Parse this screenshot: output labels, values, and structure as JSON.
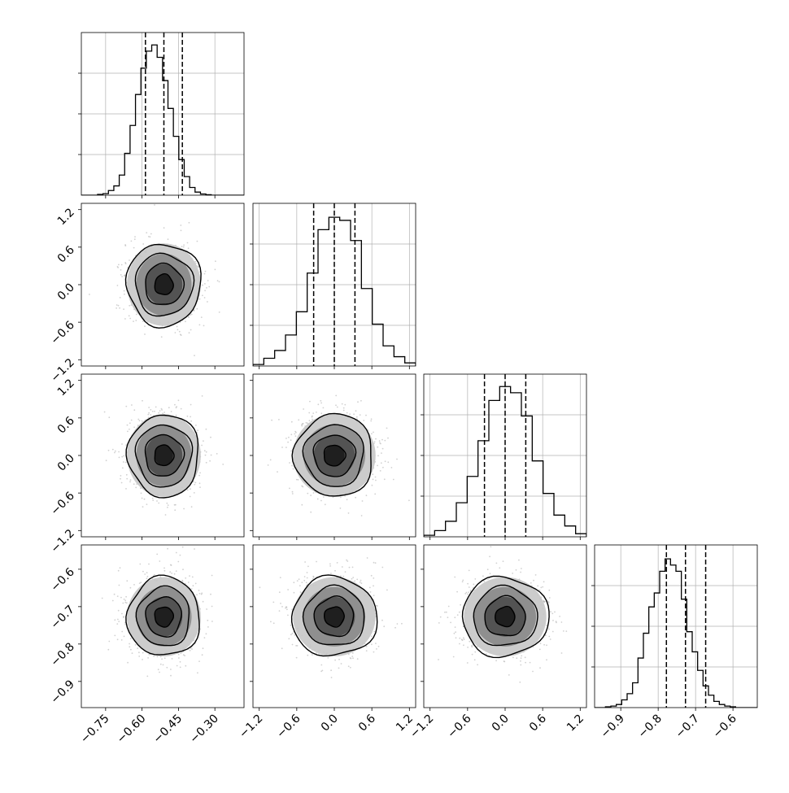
{
  "chart_data": {
    "type": "corner",
    "parameters": 4,
    "title": "",
    "grid": true,
    "histograms": [
      {
        "parameter": 0,
        "xlim": [
          -0.85,
          -0.18
        ],
        "ticks": [
          -0.75,
          -0.6,
          -0.45,
          -0.3
        ],
        "tick_labels": [
          "−0.75",
          "−0.60",
          "−0.45",
          "−0.30"
        ],
        "bins": [
          -0.85,
          -0.8277,
          -0.8054,
          -0.7831,
          -0.7608,
          -0.7385,
          -0.7162,
          -0.6939,
          -0.6716,
          -0.6493,
          -0.627,
          -0.6047,
          -0.5824,
          -0.5601,
          -0.5378,
          -0.5155,
          -0.4932,
          -0.4709,
          -0.4486,
          -0.4263,
          -0.404,
          -0.3817,
          -0.3594,
          -0.3371,
          -0.3148,
          -0.2925,
          -0.2702,
          -0.2479,
          -0.2256,
          -0.2033,
          -0.18
        ],
        "counts": [
          0,
          0,
          0,
          0.005,
          0.01,
          0.03,
          0.06,
          0.13,
          0.27,
          0.45,
          0.65,
          0.82,
          0.93,
          0.97,
          0.89,
          0.74,
          0.56,
          0.38,
          0.23,
          0.12,
          0.05,
          0.02,
          0.008,
          0.003,
          0,
          0,
          0,
          0,
          0,
          0
        ],
        "quantiles": [
          -0.586,
          -0.51,
          -0.434
        ],
        "ylim": [
          0,
          1.05
        ]
      },
      {
        "parameter": 1,
        "xlim": [
          -1.3,
          1.3
        ],
        "ticks": [
          -1.2,
          -0.6,
          0.0,
          0.6,
          1.2
        ],
        "tick_labels": [
          "−1.2",
          "−0.6",
          "0.0",
          "0.6",
          "1.2"
        ],
        "bins": [
          -1.3,
          -1.1267,
          -0.9533,
          -0.78,
          -0.6067,
          -0.4333,
          -0.26,
          -0.0867,
          0.0867,
          0.26,
          0.4333,
          0.6067,
          0.78,
          0.9533,
          1.1267,
          1.3
        ],
        "counts": [
          0.01,
          0.05,
          0.1,
          0.2,
          0.35,
          0.6,
          0.88,
          0.96,
          0.94,
          0.81,
          0.5,
          0.27,
          0.13,
          0.06,
          0.02
        ],
        "quantiles": [
          -0.33,
          0.0,
          0.33
        ],
        "ylim": [
          0,
          1.05
        ]
      },
      {
        "parameter": 2,
        "xlim": [
          -1.3,
          1.3
        ],
        "ticks": [
          -1.2,
          -0.6,
          0.0,
          0.6,
          1.2
        ],
        "tick_labels": [
          "−1.2",
          "−0.6",
          "0.0",
          "0.6",
          "1.2"
        ],
        "bins": [
          -1.3,
          -1.1267,
          -0.9533,
          -0.78,
          -0.6067,
          -0.4333,
          -0.26,
          -0.0867,
          0.0867,
          0.26,
          0.4333,
          0.6067,
          0.78,
          0.9533,
          1.1267,
          1.3
        ],
        "counts": [
          0.01,
          0.04,
          0.1,
          0.22,
          0.39,
          0.62,
          0.88,
          0.97,
          0.93,
          0.78,
          0.49,
          0.28,
          0.14,
          0.07,
          0.02
        ],
        "quantiles": [
          -0.33,
          0.0,
          0.33
        ],
        "ylim": [
          0,
          1.05
        ]
      },
      {
        "parameter": 3,
        "xlim": [
          -0.97,
          -0.535
        ],
        "ticks": [
          -0.9,
          -0.8,
          -0.7,
          -0.6
        ],
        "tick_labels": [
          "−0.9",
          "−0.8",
          "−0.7",
          "−0.6"
        ],
        "bins": [
          -0.97,
          -0.9555,
          -0.941,
          -0.9265,
          -0.912,
          -0.8975,
          -0.883,
          -0.8685,
          -0.854,
          -0.8395,
          -0.825,
          -0.8105,
          -0.796,
          -0.7815,
          -0.767,
          -0.7525,
          -0.738,
          -0.7235,
          -0.709,
          -0.6945,
          -0.68,
          -0.6655,
          -0.651,
          -0.6365,
          -0.622,
          -0.6075,
          -0.593,
          -0.5785,
          -0.564,
          -0.5495,
          -0.535
        ],
        "counts": [
          0,
          0,
          0.005,
          0.01,
          0.02,
          0.05,
          0.09,
          0.16,
          0.32,
          0.48,
          0.65,
          0.74,
          0.88,
          0.96,
          0.92,
          0.88,
          0.7,
          0.49,
          0.36,
          0.24,
          0.14,
          0.08,
          0.04,
          0.02,
          0.01,
          0.005,
          0,
          0,
          0,
          0
        ],
        "quantiles": [
          -0.778,
          -0.727,
          -0.673
        ],
        "ylim": [
          0,
          1.05
        ]
      }
    ],
    "pairs": [
      {
        "x": 0,
        "y": 1,
        "center": [
          -0.51,
          0.0
        ],
        "sigma": [
          0.076,
          0.33
        ],
        "ylim": [
          -1.3,
          1.3
        ],
        "yticks": [
          -1.2,
          -0.6,
          0.0,
          0.6,
          1.2
        ],
        "ytick_labels": [
          "−1.2",
          "−0.6",
          "0.0",
          "0.6",
          "1.2"
        ]
      },
      {
        "x": 0,
        "y": 2,
        "center": [
          -0.51,
          0.0
        ],
        "sigma": [
          0.076,
          0.33
        ],
        "ylim": [
          -1.3,
          1.3
        ],
        "yticks": [
          -1.2,
          -0.6,
          0.0,
          0.6,
          1.2
        ],
        "ytick_labels": [
          "−1.2",
          "−0.6",
          "0.0",
          "0.6",
          "1.2"
        ]
      },
      {
        "x": 1,
        "y": 2,
        "center": [
          0.0,
          0.0
        ],
        "sigma": [
          0.33,
          0.33
        ]
      },
      {
        "x": 0,
        "y": 3,
        "center": [
          -0.51,
          -0.727
        ],
        "sigma": [
          0.076,
          0.053
        ],
        "ylim": [
          -0.97,
          -0.535
        ],
        "yticks": [
          -0.9,
          -0.8,
          -0.7,
          -0.6
        ],
        "ytick_labels": [
          "−0.9",
          "−0.8",
          "−0.7",
          "−0.6"
        ]
      },
      {
        "x": 1,
        "y": 3,
        "center": [
          0.0,
          -0.727
        ],
        "sigma": [
          0.33,
          0.053
        ]
      },
      {
        "x": 2,
        "y": 3,
        "center": [
          0.0,
          -0.727
        ],
        "sigma": [
          0.33,
          0.053
        ]
      }
    ],
    "contour_levels_sigma": [
      0.5,
      1.0,
      1.5,
      2.0
    ]
  }
}
